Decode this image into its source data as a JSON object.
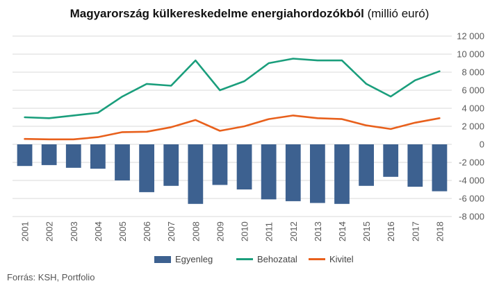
{
  "title": {
    "bold": "Magyarország külkereskedelme energiahordozókból",
    "unit": "(millió euró)"
  },
  "source": "Forrás: KSH, Portfolio",
  "colors": {
    "bar": "#3d6190",
    "import": "#1a9e7c",
    "export": "#e8601c",
    "grid": "#d9d9d9",
    "tick": "#595959"
  },
  "chart_data": {
    "type": "bar",
    "categories": [
      "2001",
      "2002",
      "2003",
      "2004",
      "2005",
      "2006",
      "2007",
      "2008",
      "2009",
      "2010",
      "2011",
      "2012",
      "2013",
      "2014",
      "2015",
      "2016",
      "2017",
      "2018"
    ],
    "ylim": [
      -8000,
      12000
    ],
    "yticks": [
      12000,
      10000,
      8000,
      6000,
      4000,
      2000,
      0,
      -2000,
      -4000,
      -6000,
      -8000
    ],
    "ytick_labels": [
      "12 000",
      "10 000",
      "8 000",
      "6 000",
      "4 000",
      "2 000",
      "0",
      "-2 000",
      "-4 000",
      "-6 000",
      "-8 000"
    ],
    "grid": true,
    "legend_position": "bottom",
    "series": [
      {
        "name": "Egyenleg",
        "kind": "bar",
        "values": [
          -2400,
          -2300,
          -2600,
          -2700,
          -4000,
          -5300,
          -4600,
          -6600,
          -4500,
          -5000,
          -6100,
          -6300,
          -6500,
          -6600,
          -4600,
          -3600,
          -4700,
          -5200
        ]
      },
      {
        "name": "Behozatal",
        "kind": "line",
        "values": [
          3000,
          2900,
          3200,
          3500,
          5300,
          6700,
          6500,
          9300,
          6000,
          7000,
          9000,
          9500,
          9300,
          9300,
          6700,
          5300,
          7100,
          8100
        ]
      },
      {
        "name": "Kivitel",
        "kind": "line",
        "values": [
          600,
          550,
          550,
          800,
          1350,
          1400,
          1900,
          2700,
          1500,
          2000,
          2800,
          3200,
          2900,
          2800,
          2100,
          1700,
          2400,
          2900
        ]
      }
    ]
  }
}
